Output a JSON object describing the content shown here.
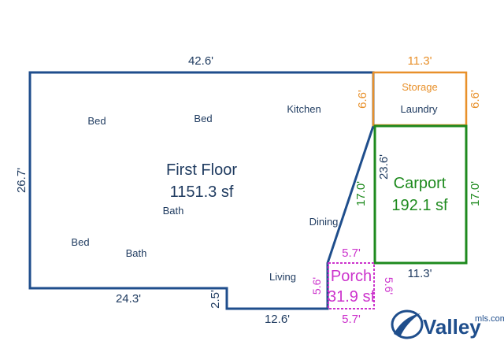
{
  "colors": {
    "first_floor": "#1f4e8c",
    "storage": "#e8902a",
    "carport": "#1e8a1e",
    "porch": "#cc33cc",
    "room_text": "#1e3a5f",
    "logo": "#1f4e8c"
  },
  "first_floor": {
    "name": "First Floor",
    "area": "1151.3 sf",
    "dim_top": "42.6'",
    "dim_left": "26.7'",
    "dim_bottom_left": "24.3'",
    "dim_step": "2.5'",
    "dim_bottom_right": "12.6'",
    "rooms": {
      "bed1": "Bed",
      "bed2": "Bed",
      "bed3": "Bed",
      "kitchen": "Kitchen",
      "bath1": "Bath",
      "bath2": "Bath",
      "dining": "Dining",
      "living": "Living"
    }
  },
  "storage": {
    "label": "Storage",
    "sublabel": "Laundry",
    "dim_top": "11.3'",
    "dim_left": "6.6'",
    "dim_right": "6.6'"
  },
  "carport": {
    "name": "Carport",
    "area": "192.1 sf",
    "dim_left_outer": "17.0'",
    "dim_left_inner": "23.6'",
    "dim_right": "17.0'",
    "dim_bottom": "11.3'"
  },
  "porch": {
    "name": "Porch",
    "area": "31.9 sf",
    "dim_top": "5.7'",
    "dim_bottom": "5.7'",
    "dim_left": "5.6'",
    "dim_right": "5.6'"
  },
  "logo": {
    "brand": "Valley",
    "suffix": "mls.com"
  }
}
